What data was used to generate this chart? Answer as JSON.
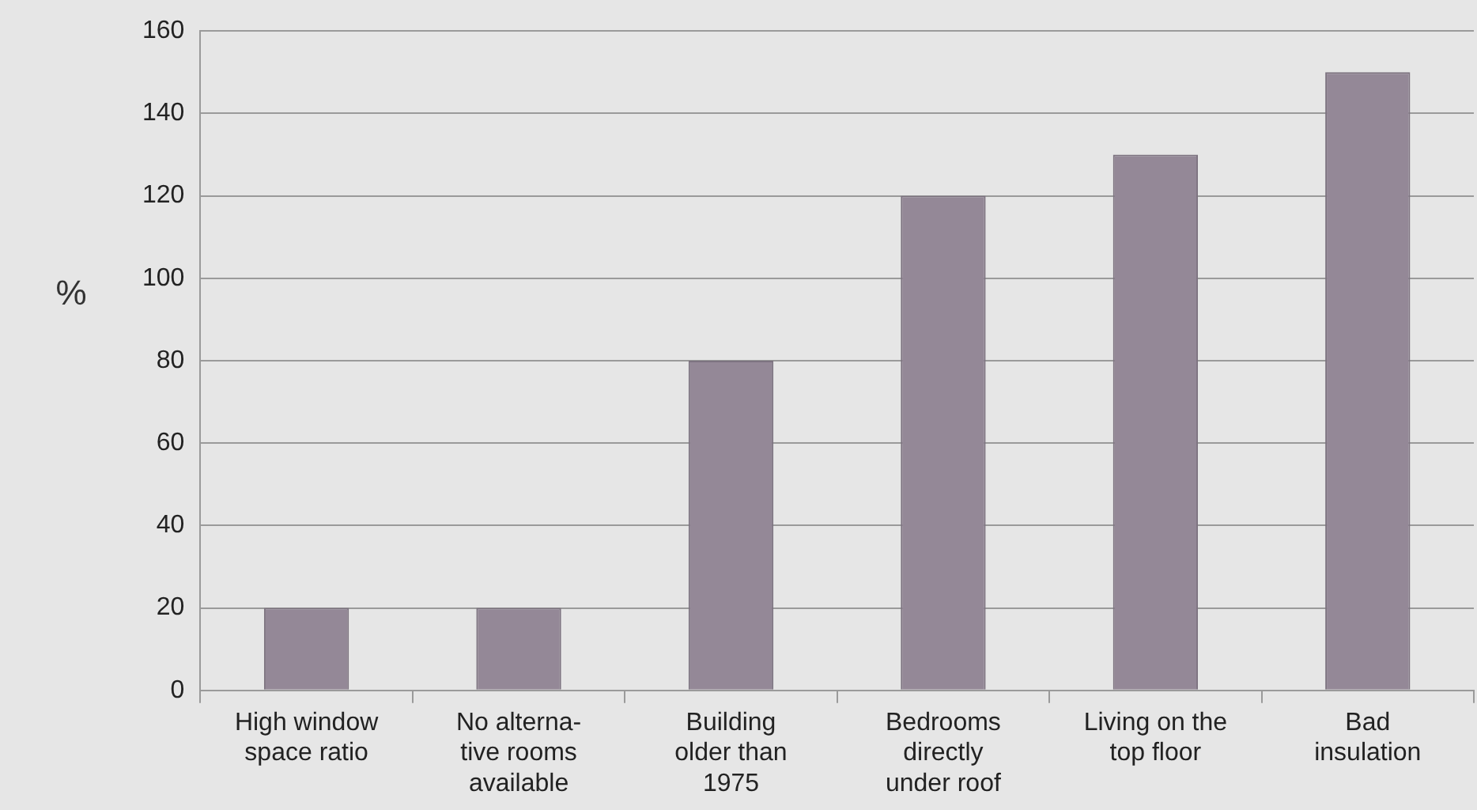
{
  "chart_data": {
    "type": "bar",
    "ylabel": "%",
    "categories": [
      "High window\nspace ratio",
      "No alterna-\ntive rooms\navailable",
      "Building\nolder than\n1975",
      "Bedrooms\ndirectly\nunder roof",
      "Living on the\ntop floor",
      "Bad\ninsulation"
    ],
    "values": [
      20,
      20,
      80,
      120,
      130,
      150
    ],
    "color": "#948897",
    "ylim": [
      0,
      160
    ],
    "yticks": [
      0,
      20,
      40,
      60,
      80,
      100,
      120,
      140,
      160
    ],
    "grid": "y",
    "legend": false
  }
}
